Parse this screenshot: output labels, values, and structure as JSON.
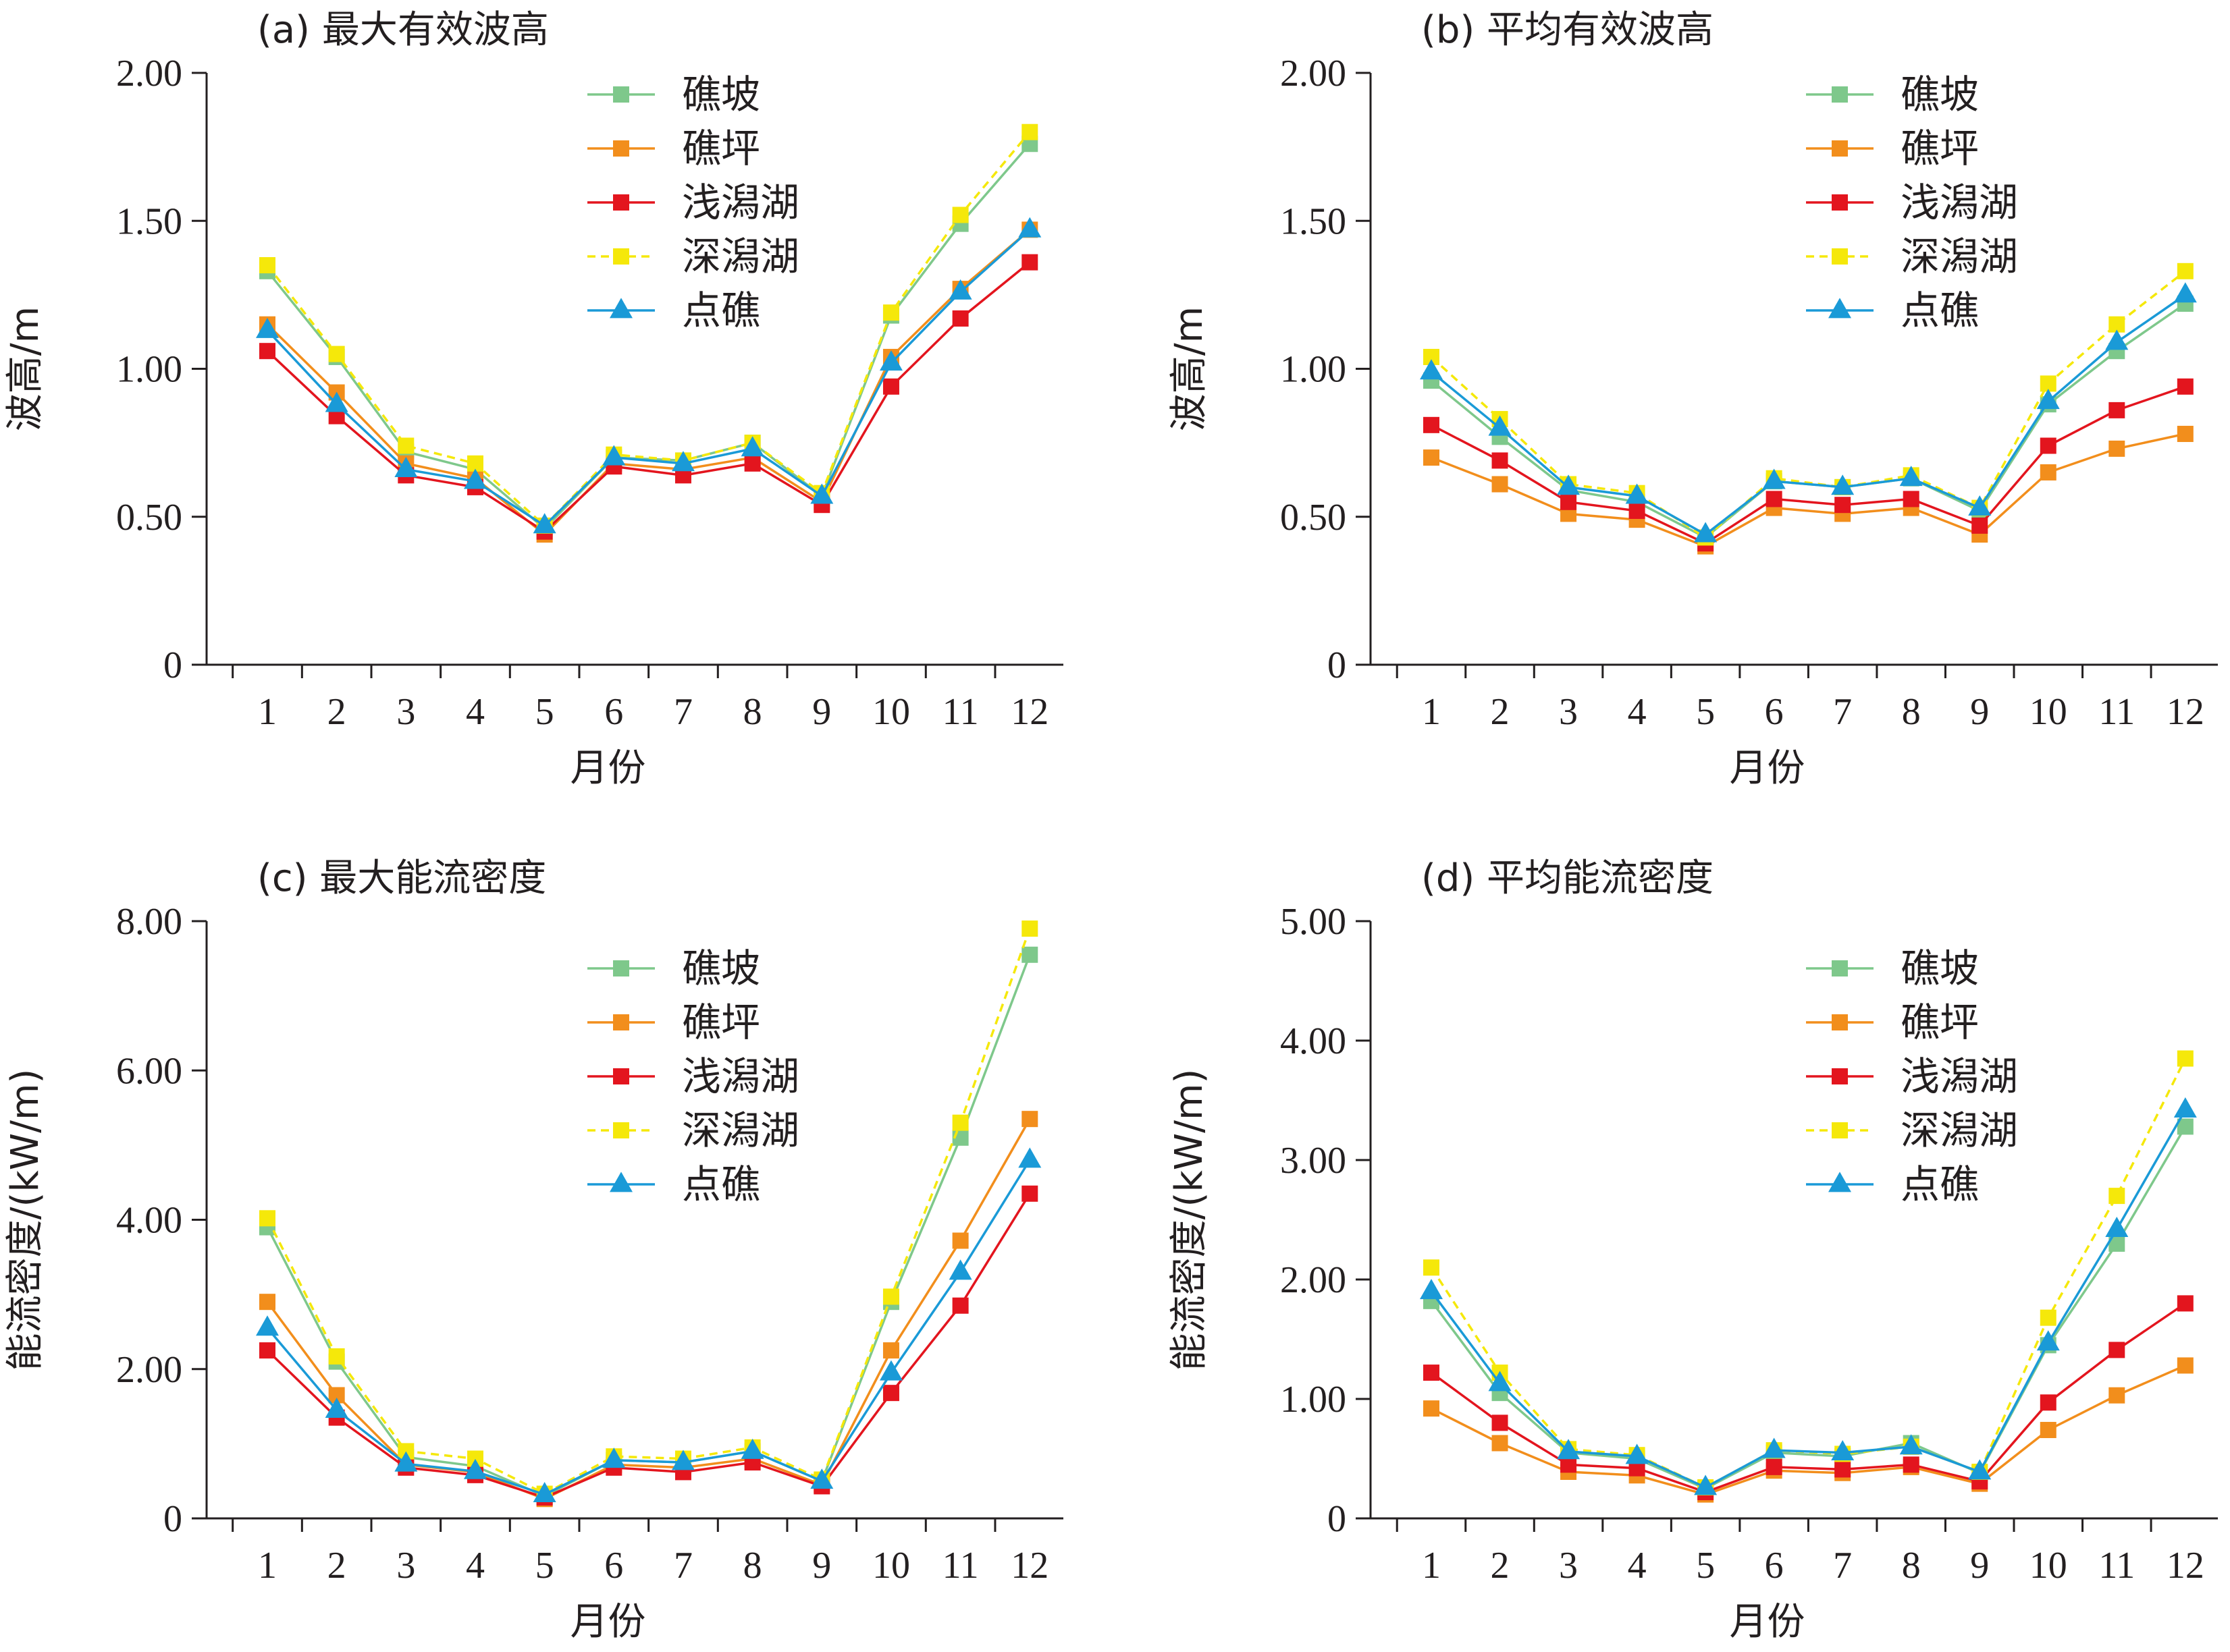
{
  "chart_data": [
    {
      "type": "line",
      "title": "(a) 最大有效波高",
      "xlabel": "月份",
      "ylabel": "波高/m",
      "ylim": [
        0,
        2.0
      ],
      "yticks": [
        "0",
        "0.50",
        "1.00",
        "1.50",
        "2.00"
      ],
      "categories": [
        "1",
        "2",
        "3",
        "4",
        "5",
        "6",
        "7",
        "8",
        "9",
        "10",
        "11",
        "12"
      ],
      "legend_position": "top-right",
      "series": [
        {
          "name": "礁坡",
          "color": "#7ec88b",
          "marker": "square",
          "dash": false,
          "values": [
            1.33,
            1.04,
            0.72,
            0.66,
            0.46,
            0.7,
            0.69,
            0.75,
            0.57,
            1.18,
            1.49,
            1.76
          ]
        },
        {
          "name": "礁坪",
          "color": "#f28e1c",
          "marker": "square",
          "dash": false,
          "values": [
            1.15,
            0.92,
            0.68,
            0.63,
            0.44,
            0.68,
            0.66,
            0.7,
            0.55,
            1.04,
            1.27,
            1.47
          ]
        },
        {
          "name": "浅潟湖",
          "color": "#e3151e",
          "marker": "square",
          "dash": false,
          "values": [
            1.06,
            0.84,
            0.64,
            0.6,
            0.45,
            0.67,
            0.64,
            0.68,
            0.54,
            0.94,
            1.17,
            1.36
          ]
        },
        {
          "name": "深潟湖",
          "color": "#f5e80a",
          "marker": "square",
          "dash": true,
          "values": [
            1.35,
            1.05,
            0.74,
            0.68,
            0.47,
            0.71,
            0.69,
            0.75,
            0.58,
            1.19,
            1.52,
            1.8
          ]
        },
        {
          "name": "点礁",
          "color": "#1a9ad7",
          "marker": "triangle",
          "dash": false,
          "values": [
            1.13,
            0.88,
            0.66,
            0.62,
            0.47,
            0.7,
            0.68,
            0.73,
            0.57,
            1.02,
            1.26,
            1.47
          ]
        }
      ]
    },
    {
      "type": "line",
      "title": "(b) 平均有效波高",
      "xlabel": "月份",
      "ylabel": "波高/m",
      "ylim": [
        0,
        2.0
      ],
      "yticks": [
        "0",
        "0.50",
        "1.00",
        "1.50",
        "2.00"
      ],
      "categories": [
        "1",
        "2",
        "3",
        "4",
        "5",
        "6",
        "7",
        "8",
        "9",
        "10",
        "11",
        "12"
      ],
      "legend_position": "top-right",
      "series": [
        {
          "name": "礁坡",
          "color": "#7ec88b",
          "marker": "square",
          "dash": false,
          "values": [
            0.96,
            0.77,
            0.59,
            0.55,
            0.43,
            0.62,
            0.6,
            0.63,
            0.52,
            0.88,
            1.06,
            1.22
          ]
        },
        {
          "name": "礁坪",
          "color": "#f28e1c",
          "marker": "square",
          "dash": false,
          "values": [
            0.7,
            0.61,
            0.51,
            0.49,
            0.4,
            0.53,
            0.51,
            0.53,
            0.44,
            0.65,
            0.73,
            0.78
          ]
        },
        {
          "name": "浅潟湖",
          "color": "#e3151e",
          "marker": "square",
          "dash": false,
          "values": [
            0.81,
            0.69,
            0.55,
            0.52,
            0.41,
            0.56,
            0.54,
            0.56,
            0.47,
            0.74,
            0.86,
            0.94
          ]
        },
        {
          "name": "深潟湖",
          "color": "#f5e80a",
          "marker": "square",
          "dash": true,
          "values": [
            1.04,
            0.83,
            0.61,
            0.58,
            0.43,
            0.63,
            0.6,
            0.64,
            0.53,
            0.95,
            1.15,
            1.33
          ]
        },
        {
          "name": "点礁",
          "color": "#1a9ad7",
          "marker": "triangle",
          "dash": false,
          "values": [
            0.99,
            0.8,
            0.6,
            0.57,
            0.44,
            0.62,
            0.6,
            0.63,
            0.53,
            0.89,
            1.09,
            1.25
          ]
        }
      ]
    },
    {
      "type": "line",
      "title": "(c) 最大能流密度",
      "xlabel": "月份",
      "ylabel": "能流密度/(kW/m)",
      "ylim": [
        0,
        8.0
      ],
      "yticks": [
        "0",
        "2.00",
        "4.00",
        "6.00",
        "8.00"
      ],
      "categories": [
        "1",
        "2",
        "3",
        "4",
        "5",
        "6",
        "7",
        "8",
        "9",
        "10",
        "11",
        "12"
      ],
      "legend_position": "top-right",
      "series": [
        {
          "name": "礁坡",
          "color": "#7ec88b",
          "marker": "square",
          "dash": false,
          "values": [
            3.9,
            2.1,
            0.82,
            0.7,
            0.3,
            0.78,
            0.75,
            0.9,
            0.5,
            2.9,
            5.1,
            7.55
          ]
        },
        {
          "name": "礁坪",
          "color": "#f28e1c",
          "marker": "square",
          "dash": false,
          "values": [
            2.9,
            1.65,
            0.72,
            0.62,
            0.26,
            0.72,
            0.68,
            0.8,
            0.45,
            2.25,
            3.72,
            5.35
          ]
        },
        {
          "name": "浅潟湖",
          "color": "#e3151e",
          "marker": "square",
          "dash": false,
          "values": [
            2.25,
            1.35,
            0.68,
            0.58,
            0.28,
            0.68,
            0.62,
            0.75,
            0.43,
            1.68,
            2.85,
            4.35
          ]
        },
        {
          "name": "深潟湖",
          "color": "#f5e80a",
          "marker": "square",
          "dash": true,
          "values": [
            4.02,
            2.17,
            0.9,
            0.8,
            0.33,
            0.83,
            0.8,
            0.95,
            0.52,
            2.97,
            5.3,
            7.9
          ]
        },
        {
          "name": "点礁",
          "color": "#1a9ad7",
          "marker": "triangle",
          "dash": false,
          "values": [
            2.55,
            1.45,
            0.73,
            0.63,
            0.32,
            0.78,
            0.75,
            0.9,
            0.5,
            1.95,
            3.3,
            4.8
          ]
        }
      ]
    },
    {
      "type": "line",
      "title": "(d) 平均能流密度",
      "xlabel": "月份",
      "ylabel": "能流密度/(kW/m)",
      "ylim": [
        0,
        5.0
      ],
      "yticks": [
        "0",
        "1.00",
        "2.00",
        "3.00",
        "4.00",
        "5.00"
      ],
      "categories": [
        "1",
        "2",
        "3",
        "4",
        "5",
        "6",
        "7",
        "8",
        "9",
        "10",
        "11",
        "12"
      ],
      "legend_position": "top-right",
      "series": [
        {
          "name": "礁坡",
          "color": "#7ec88b",
          "marker": "square",
          "dash": false,
          "values": [
            1.82,
            1.05,
            0.55,
            0.5,
            0.25,
            0.55,
            0.52,
            0.63,
            0.38,
            1.45,
            2.3,
            3.28
          ]
        },
        {
          "name": "礁坪",
          "color": "#f28e1c",
          "marker": "square",
          "dash": false,
          "values": [
            0.92,
            0.63,
            0.39,
            0.36,
            0.2,
            0.4,
            0.38,
            0.43,
            0.29,
            0.74,
            1.03,
            1.28
          ]
        },
        {
          "name": "浅潟湖",
          "color": "#e3151e",
          "marker": "square",
          "dash": false,
          "values": [
            1.22,
            0.8,
            0.45,
            0.42,
            0.22,
            0.43,
            0.41,
            0.45,
            0.31,
            0.97,
            1.41,
            1.8
          ]
        },
        {
          "name": "深潟湖",
          "color": "#f5e80a",
          "marker": "square",
          "dash": true,
          "values": [
            2.1,
            1.22,
            0.58,
            0.53,
            0.26,
            0.57,
            0.54,
            0.6,
            0.39,
            1.68,
            2.7,
            3.85
          ]
        },
        {
          "name": "点礁",
          "color": "#1a9ad7",
          "marker": "triangle",
          "dash": false,
          "values": [
            1.9,
            1.13,
            0.56,
            0.52,
            0.26,
            0.57,
            0.55,
            0.6,
            0.39,
            1.47,
            2.42,
            3.42
          ]
        }
      ]
    }
  ]
}
